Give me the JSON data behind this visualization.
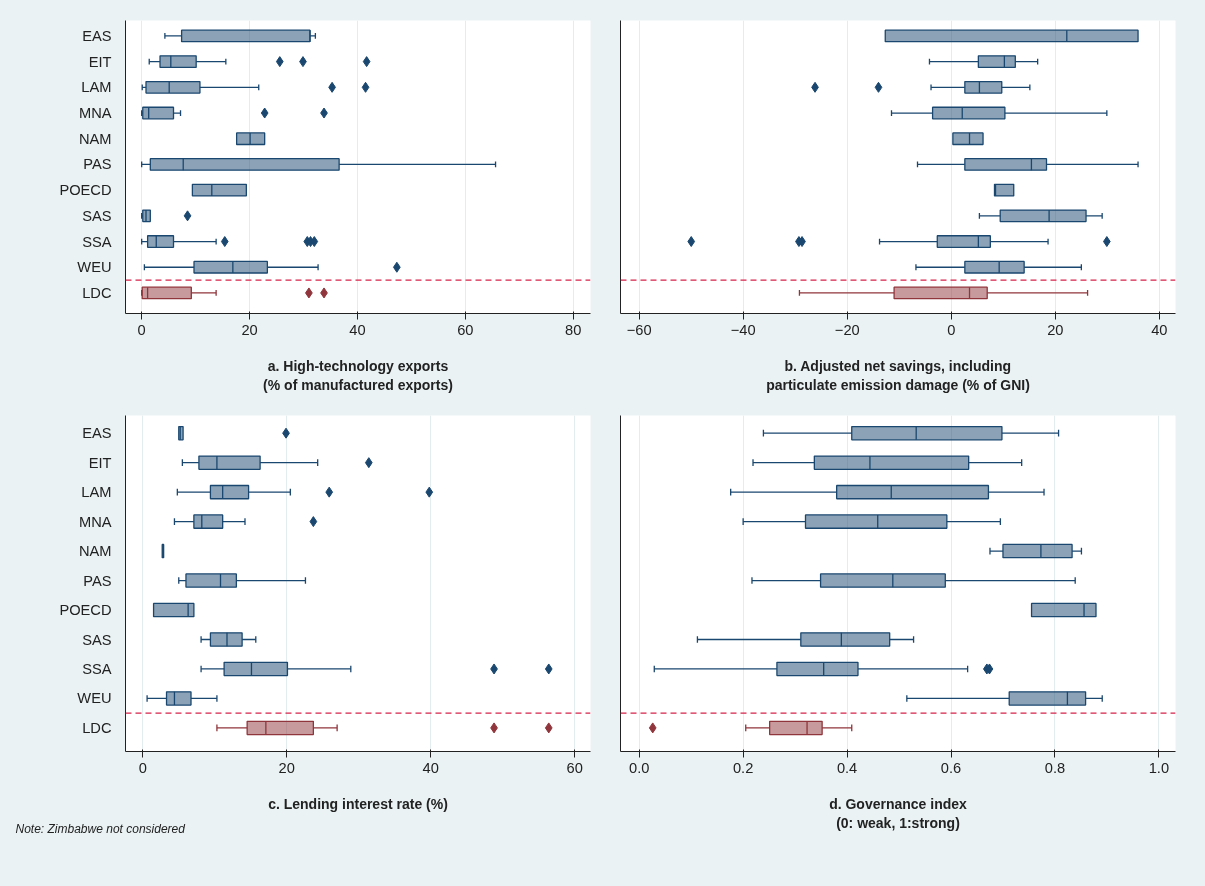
{
  "chart_data": [
    {
      "type": "box",
      "orientation": "horizontal",
      "xlabel": "a. High-technology exports\n(% of manufactured exports)",
      "categories": [
        "EAS",
        "EIT",
        "LAM",
        "MNA",
        "NAM",
        "PAS",
        "POECD",
        "SAS",
        "SSA",
        "WEU",
        "LDC"
      ],
      "xlim": [
        -3.0,
        83.2
      ],
      "xticks": [
        0,
        20,
        40,
        60,
        80
      ],
      "grid": "x",
      "marker": "diamond",
      "ref_lines": [
        {
          "axis": "y",
          "value": "LDC",
          "color": "#d6234a",
          "line_style": "dashed"
        }
      ],
      "series": [
        {
          "color": "#1a476f",
          "boxes": [
            {
              "low": 4.3,
              "q1": 7.4,
              "median": 31.2,
              "q3": 31.2,
              "high": 32.2
            },
            {
              "low": 1.4,
              "q1": 3.4,
              "median": 5.4,
              "q3": 10.1,
              "high": 15.6,
              "outliers": [
                25.6,
                29.9,
                41.7
              ]
            },
            {
              "low": 0.1,
              "q1": 0.8,
              "median": 5.1,
              "q3": 10.8,
              "high": 21.7,
              "outliers": [
                35.3,
                41.5
              ]
            },
            {
              "low": 0,
              "q1": 0.2,
              "median": 1.3,
              "q3": 5.9,
              "high": 7.2,
              "outliers": [
                22.8,
                33.8
              ]
            },
            {
              "low": 17.6,
              "q1": 17.6,
              "median": 20.1,
              "q3": 22.8,
              "high": 22.8
            },
            {
              "low": 0,
              "q1": 1.6,
              "median": 7.7,
              "q3": 36.6,
              "high": 65.6
            },
            {
              "low": 9.4,
              "q1": 9.4,
              "median": 13.0,
              "q3": 19.4,
              "high": 19.4
            },
            {
              "low": 0,
              "q1": 0.2,
              "median": 0.8,
              "q3": 1.6,
              "high": 1.6,
              "outliers": [
                8.5
              ]
            },
            {
              "low": 0,
              "q1": 1.1,
              "median": 2.7,
              "q3": 5.9,
              "high": 13.8,
              "outliers": [
                15.4,
                30.7,
                31.3,
                32.0
              ]
            },
            {
              "low": 0.5,
              "q1": 9.7,
              "median": 16.9,
              "q3": 23.3,
              "high": 32.7,
              "outliers": [
                47.3
              ]
            },
            null
          ]
        },
        {
          "color": "#90353b",
          "boxes": [
            null,
            null,
            null,
            null,
            null,
            null,
            null,
            null,
            null,
            null,
            {
              "low": 0,
              "q1": 0.1,
              "median": 1.1,
              "q3": 9.2,
              "high": 13.8,
              "outliers": [
                31.0,
                33.8
              ]
            }
          ]
        }
      ]
    },
    {
      "type": "box",
      "orientation": "horizontal",
      "xlabel": "b. Adjusted net savings, including\nparticulate emission damage (% of GNI)",
      "categories": [
        "EAS",
        "EIT",
        "LAM",
        "MNA",
        "NAM",
        "PAS",
        "POECD",
        "SAS",
        "SSA",
        "WEU",
        "LDC"
      ],
      "tick_labels": "x",
      "xlim": [
        -63.6,
        43.1
      ],
      "xticks": [
        -60,
        -40,
        -20,
        0,
        20,
        40
      ],
      "grid": "x",
      "marker": "diamond",
      "ref_lines": [
        {
          "axis": "y",
          "value": "LDC",
          "color": "#d6234a",
          "line_style": "dashed"
        }
      ],
      "series": [
        {
          "color": "#1a476f",
          "boxes": [
            {
              "low": -12.7,
              "q1": -12.7,
              "median": 22.2,
              "q3": 35.9,
              "high": 35.9
            },
            {
              "low": -4.2,
              "q1": 5.2,
              "median": 10.2,
              "q3": 12.3,
              "high": 16.6
            },
            {
              "low": -3.9,
              "q1": 2.6,
              "median": 5.4,
              "q3": 9.7,
              "high": 15.1,
              "outliers": [
                -26.2,
                -14.0
              ]
            },
            {
              "low": -11.5,
              "q1": -3.6,
              "median": 2.1,
              "q3": 10.3,
              "high": 29.9
            },
            {
              "low": 0.3,
              "q1": 0.3,
              "median": 3.5,
              "q3": 6.1,
              "high": 6.1
            },
            {
              "low": -6.5,
              "q1": 2.6,
              "median": 15.4,
              "q3": 18.3,
              "high": 35.9
            },
            {
              "low": 8.3,
              "q1": 8.3,
              "median": 8.5,
              "q3": 12.0,
              "high": 12.0
            },
            {
              "low": 5.4,
              "q1": 9.4,
              "median": 18.8,
              "q3": 25.9,
              "high": 29.0
            },
            {
              "low": -13.8,
              "q1": -2.7,
              "median": 5.2,
              "q3": 7.5,
              "high": 18.6,
              "outliers": [
                -50.0,
                -29.3,
                -28.7,
                29.9
              ]
            },
            {
              "low": -6.8,
              "q1": 2.6,
              "median": 9.2,
              "q3": 14.0,
              "high": 25.0
            },
            null
          ]
        },
        {
          "color": "#90353b",
          "boxes": [
            null,
            null,
            null,
            null,
            null,
            null,
            null,
            null,
            null,
            null,
            {
              "low": -29.2,
              "q1": -11.0,
              "median": 3.5,
              "q3": 6.9,
              "high": 26.2
            }
          ]
        }
      ]
    },
    {
      "type": "box",
      "orientation": "horizontal",
      "xlabel": "c. Lending interest rate (%)",
      "annotations": [
        "Note: Zimbabwe not considered"
      ],
      "categories": [
        "EAS",
        "EIT",
        "LAM",
        "MNA",
        "NAM",
        "PAS",
        "POECD",
        "SAS",
        "SSA",
        "WEU",
        "LDC"
      ],
      "xlim": [
        -2.4,
        62.2
      ],
      "xticks": [
        0,
        20,
        40,
        60
      ],
      "grid": "x",
      "marker": "diamond",
      "ref_lines": [
        {
          "axis": "y",
          "value": "LDC",
          "color": "#d6234a",
          "line_style": "dashed"
        }
      ],
      "series": [
        {
          "color": "#1a476f",
          "boxes": [
            {
              "low": 5.0,
              "q1": 5.0,
              "median": 5.2,
              "q3": 5.6,
              "high": 5.6,
              "outliers": [
                19.9
              ]
            },
            {
              "low": 5.5,
              "q1": 7.8,
              "median": 10.3,
              "q3": 16.3,
              "high": 24.3,
              "outliers": [
                31.4
              ]
            },
            {
              "low": 4.8,
              "q1": 9.4,
              "median": 11.1,
              "q3": 14.7,
              "high": 20.5,
              "outliers": [
                25.9,
                39.8
              ]
            },
            {
              "low": 4.4,
              "q1": 7.1,
              "median": 8.2,
              "q3": 11.1,
              "high": 14.2,
              "outliers": [
                23.7
              ]
            },
            {
              "low": 2.7,
              "q1": 2.7,
              "median": 2.8,
              "q3": 2.9,
              "high": 2.9
            },
            {
              "low": 5.0,
              "q1": 6.0,
              "median": 10.8,
              "q3": 13.0,
              "high": 22.6
            },
            {
              "low": 1.5,
              "q1": 1.5,
              "median": 6.3,
              "q3": 7.1,
              "high": 7.1
            },
            {
              "low": 8.1,
              "q1": 9.4,
              "median": 11.7,
              "q3": 13.8,
              "high": 15.7
            },
            {
              "low": 8.1,
              "q1": 11.3,
              "median": 15.1,
              "q3": 20.1,
              "high": 28.9,
              "outliers": [
                48.8,
                56.4
              ]
            },
            {
              "low": 0.6,
              "q1": 3.3,
              "median": 4.4,
              "q3": 6.7,
              "high": 10.3
            },
            null
          ]
        },
        {
          "color": "#90353b",
          "boxes": [
            null,
            null,
            null,
            null,
            null,
            null,
            null,
            null,
            null,
            null,
            {
              "low": 10.3,
              "q1": 14.5,
              "median": 17.1,
              "q3": 23.7,
              "high": 27.0,
              "outliers": [
                48.8,
                56.4
              ]
            }
          ]
        }
      ]
    },
    {
      "type": "box",
      "orientation": "horizontal",
      "xlabel": "d. Governance index\n(0: weak, 1:strong)",
      "categories": [
        "EAS",
        "EIT",
        "LAM",
        "MNA",
        "NAM",
        "PAS",
        "POECD",
        "SAS",
        "SSA",
        "WEU",
        "LDC"
      ],
      "tick_labels": "x",
      "xlim": [
        -0.036,
        1.032
      ],
      "xticks": [
        {
          "value": 0,
          "label": "0.0"
        },
        {
          "value": 0.2,
          "label": "0.2"
        },
        {
          "value": 0.4,
          "label": "0.4"
        },
        {
          "value": 0.6,
          "label": "0.6"
        },
        {
          "value": 0.8,
          "label": "0.8"
        },
        {
          "value": 1,
          "label": "1.0"
        }
      ],
      "grid": "x",
      "marker": "diamond",
      "ref_lines": [
        {
          "axis": "y",
          "value": "LDC",
          "color": "#d6234a",
          "line_style": "dashed"
        }
      ],
      "series": [
        {
          "color": "#1a476f",
          "boxes": [
            {
              "low": 0.239,
              "q1": 0.409,
              "median": 0.533,
              "q3": 0.698,
              "high": 0.807
            },
            {
              "low": 0.219,
              "q1": 0.337,
              "median": 0.444,
              "q3": 0.634,
              "high": 0.736
            },
            {
              "low": 0.176,
              "q1": 0.38,
              "median": 0.485,
              "q3": 0.672,
              "high": 0.779
            },
            {
              "low": 0.2,
              "q1": 0.32,
              "median": 0.459,
              "q3": 0.592,
              "high": 0.695
            },
            {
              "low": 0.675,
              "q1": 0.7,
              "median": 0.773,
              "q3": 0.833,
              "high": 0.851
            },
            {
              "low": 0.217,
              "q1": 0.349,
              "median": 0.488,
              "q3": 0.589,
              "high": 0.839
            },
            {
              "low": 0.755,
              "q1": 0.755,
              "median": 0.856,
              "q3": 0.879,
              "high": 0.879
            },
            {
              "low": 0.112,
              "q1": 0.311,
              "median": 0.389,
              "q3": 0.482,
              "high": 0.528
            },
            {
              "low": 0.029,
              "q1": 0.265,
              "median": 0.355,
              "q3": 0.421,
              "high": 0.632,
              "outliers": [
                0.669,
                0.674
              ]
            },
            {
              "low": 0.515,
              "q1": 0.712,
              "median": 0.824,
              "q3": 0.859,
              "high": 0.891
            },
            null
          ]
        },
        {
          "color": "#90353b",
          "boxes": [
            null,
            null,
            null,
            null,
            null,
            null,
            null,
            null,
            null,
            null,
            {
              "low": 0.205,
              "q1": 0.251,
              "median": 0.323,
              "q3": 0.352,
              "high": 0.409,
              "outliers": [
                0.026
              ]
            }
          ]
        }
      ]
    }
  ]
}
